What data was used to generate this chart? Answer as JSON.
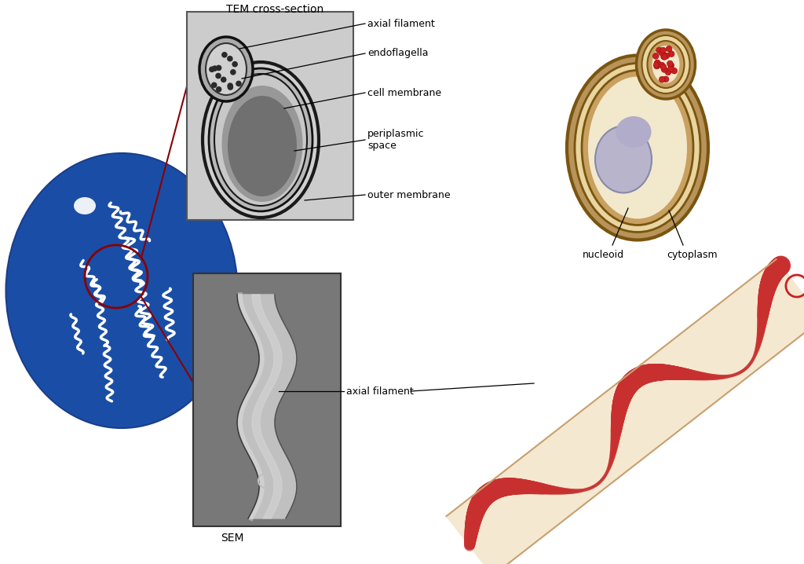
{
  "background_color": "#ffffff",
  "title_tem": "TEM cross-section",
  "title_sem": "SEM",
  "label_axial_filament_top": "axial filament",
  "label_endoflagella": "endoflagella",
  "label_cell_membrane": "cell membrane",
  "label_periplasmic_space": "periplasmic\nspace",
  "label_outer_membrane": "outer membrane",
  "label_nucleoid": "nucleoid",
  "label_cytoplasm": "cytoplasm",
  "label_axial_filament_bottom": "axial filament",
  "blue_circle_color": "#1c4fa8",
  "red_circle_color": "#8b0000",
  "annotation_line_color": "#000000",
  "fontsize_labels": 9,
  "fontsize_titles": 10
}
